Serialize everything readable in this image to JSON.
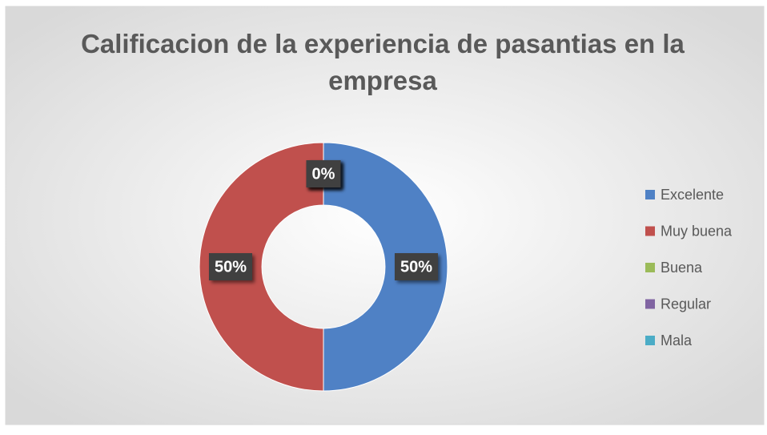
{
  "chart_data": {
    "type": "donut",
    "title": "Calificacion de la experiencia de pasantias en la empresa",
    "categories": [
      "Excelente",
      "Muy buena",
      "Buena",
      "Regular",
      "Mala"
    ],
    "values": [
      50,
      50,
      0,
      0,
      0
    ],
    "value_labels": [
      "50%",
      "50%",
      "0%",
      "0%",
      "0%"
    ],
    "colors": [
      "#4f81c5",
      "#c0504d",
      "#9bbb59",
      "#8064a2",
      "#4bacc6"
    ],
    "legend": "right"
  }
}
